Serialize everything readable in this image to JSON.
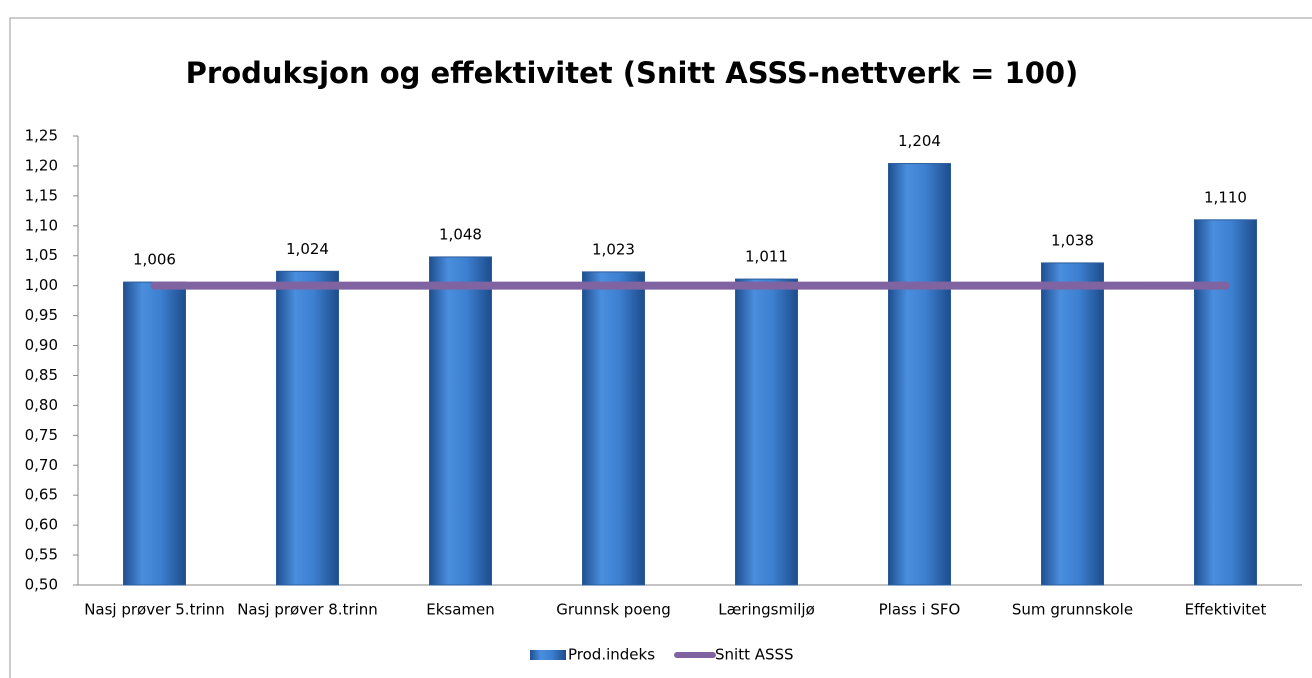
{
  "chart_data": {
    "type": "bar",
    "title": "Produksjon og effektivitet (Snitt ASSS-nettverk = 100)",
    "categories": [
      "Nasj prøver 5.trinn",
      "Nasj prøver 8.trinn",
      "Eksamen",
      "Grunnsk poeng",
      "Læringsmiljø",
      "Plass i SFO",
      "Sum grunnskole",
      "Effektivitet"
    ],
    "series": [
      {
        "name": "Prod.indeks",
        "color": "#3f7fcc",
        "type": "bar",
        "values": [
          1.006,
          1.024,
          1.048,
          1.023,
          1.011,
          1.204,
          1.038,
          1.11
        ],
        "value_labels": [
          "1,006",
          "1,024",
          "1,048",
          "1,023",
          "1,011",
          "1,204",
          "1,038",
          "1,110"
        ]
      },
      {
        "name": "Snitt ASSS",
        "color": "#8064a2",
        "type": "line",
        "values": [
          1.0,
          1.0,
          1.0,
          1.0,
          1.0,
          1.0,
          1.0,
          1.0
        ]
      }
    ],
    "ylim": [
      0.5,
      1.25
    ],
    "yticks": [
      {
        "value": 0.5,
        "label": "0,50"
      },
      {
        "value": 0.55,
        "label": "0,55"
      },
      {
        "value": 0.6,
        "label": "0,60"
      },
      {
        "value": 0.65,
        "label": "0,65"
      },
      {
        "value": 0.7,
        "label": "0,70"
      },
      {
        "value": 0.75,
        "label": "0,75"
      },
      {
        "value": 0.8,
        "label": "0,80"
      },
      {
        "value": 0.85,
        "label": "0,85"
      },
      {
        "value": 0.9,
        "label": "0,90"
      },
      {
        "value": 0.95,
        "label": "0,95"
      },
      {
        "value": 1.0,
        "label": "1,00"
      },
      {
        "value": 1.05,
        "label": "1,05"
      },
      {
        "value": 1.1,
        "label": "1,10"
      },
      {
        "value": 1.15,
        "label": "1,15"
      },
      {
        "value": 1.2,
        "label": "1,20"
      },
      {
        "value": 1.25,
        "label": "1,25"
      }
    ],
    "legend": "bottom",
    "grid": false
  }
}
